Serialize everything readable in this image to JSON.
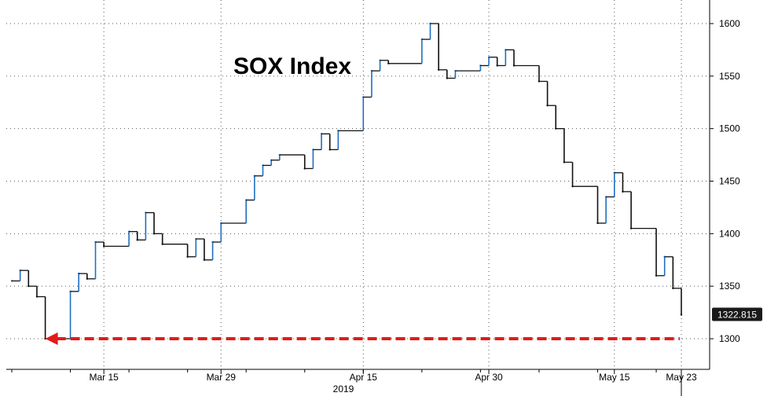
{
  "chart_data": {
    "type": "line",
    "title": "SOX Index",
    "xlabel": "",
    "ylabel": "",
    "year_label": "2019",
    "x_tick_labels": [
      "Mar 15",
      "Mar 29",
      "Apr 15",
      "Apr 30",
      "May 15",
      "May 23"
    ],
    "y_tick_labels": [
      "1600",
      "1550",
      "1500",
      "1450",
      "1400",
      "1350",
      "1300"
    ],
    "ylim": [
      1272,
      1632
    ],
    "grid": true,
    "axis_side": "right",
    "last_value_label": "1322.815",
    "reference_line": {
      "value": 1300,
      "style": "dashed-arrow",
      "color": "#e21b1b",
      "points_left": true
    },
    "series": [
      {
        "color_up": "#1f6fbf",
        "color_down": "#111111",
        "x": [
          "2019-03-04",
          "2019-03-05",
          "2019-03-06",
          "2019-03-07",
          "2019-03-08",
          "2019-03-11",
          "2019-03-12",
          "2019-03-13",
          "2019-03-14",
          "2019-03-15",
          "2019-03-18",
          "2019-03-19",
          "2019-03-20",
          "2019-03-21",
          "2019-03-22",
          "2019-03-25",
          "2019-03-26",
          "2019-03-27",
          "2019-03-28",
          "2019-03-29",
          "2019-04-01",
          "2019-04-02",
          "2019-04-03",
          "2019-04-04",
          "2019-04-05",
          "2019-04-08",
          "2019-04-09",
          "2019-04-10",
          "2019-04-11",
          "2019-04-12",
          "2019-04-15",
          "2019-04-16",
          "2019-04-17",
          "2019-04-18",
          "2019-04-22",
          "2019-04-23",
          "2019-04-24",
          "2019-04-25",
          "2019-04-26",
          "2019-04-29",
          "2019-04-30",
          "2019-05-01",
          "2019-05-02",
          "2019-05-03",
          "2019-05-06",
          "2019-05-07",
          "2019-05-08",
          "2019-05-09",
          "2019-05-10",
          "2019-05-13",
          "2019-05-14",
          "2019-05-15",
          "2019-05-16",
          "2019-05-17",
          "2019-05-20",
          "2019-05-21",
          "2019-05-22",
          "2019-05-23"
        ],
        "values": [
          1355,
          1365,
          1350,
          1340,
          1300,
          1345,
          1362,
          1357,
          1392,
          1388,
          1402,
          1394,
          1420,
          1400,
          1390,
          1378,
          1395,
          1375,
          1392,
          1410,
          1432,
          1455,
          1465,
          1470,
          1475,
          1462,
          1480,
          1495,
          1480,
          1498,
          1530,
          1555,
          1565,
          1562,
          1585,
          1600,
          1556,
          1548,
          1555,
          1560,
          1568,
          1560,
          1575,
          1560,
          1545,
          1522,
          1500,
          1468,
          1445,
          1410,
          1435,
          1458,
          1440,
          1405,
          1360,
          1378,
          1348,
          1322.815
        ]
      }
    ]
  }
}
